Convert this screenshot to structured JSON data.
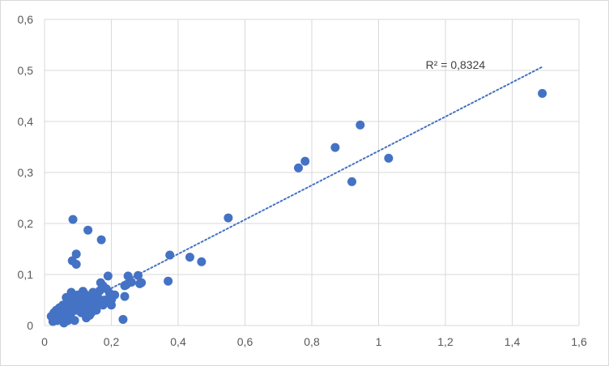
{
  "chart_data": {
    "type": "scatter",
    "title": "",
    "xlabel": "",
    "ylabel": "",
    "xlim": [
      0,
      1.6
    ],
    "ylim": [
      0,
      0.6
    ],
    "x_ticks": [
      "0",
      "0,2",
      "0,4",
      "0,6",
      "0,8",
      "1",
      "1,2",
      "1,4",
      "1,6"
    ],
    "y_ticks": [
      "0",
      "0,1",
      "0,2",
      "0,3",
      "0,4",
      "0,5",
      "0,6"
    ],
    "grid": true,
    "legend": "none",
    "colors": {
      "point": "#4472c4",
      "trendline": "#4472c4",
      "grid": "#d9d9d9"
    },
    "trendline": {
      "type": "linear",
      "style": "dotted",
      "from": [
        0.2,
        0.073
      ],
      "to": [
        1.49,
        0.507
      ],
      "label": "R² = 0,8324",
      "label_at": [
        1.23,
        0.503
      ]
    },
    "points": [
      [
        1.49,
        0.455
      ],
      [
        1.03,
        0.328
      ],
      [
        0.945,
        0.393
      ],
      [
        0.92,
        0.282
      ],
      [
        0.87,
        0.349
      ],
      [
        0.78,
        0.322
      ],
      [
        0.76,
        0.309
      ],
      [
        0.55,
        0.211
      ],
      [
        0.47,
        0.125
      ],
      [
        0.435,
        0.134
      ],
      [
        0.375,
        0.138
      ],
      [
        0.37,
        0.087
      ],
      [
        0.29,
        0.084
      ],
      [
        0.28,
        0.098
      ],
      [
        0.285,
        0.082
      ],
      [
        0.26,
        0.085
      ],
      [
        0.25,
        0.097
      ],
      [
        0.245,
        0.08
      ],
      [
        0.24,
        0.078
      ],
      [
        0.24,
        0.057
      ],
      [
        0.235,
        0.012
      ],
      [
        0.21,
        0.06
      ],
      [
        0.2,
        0.055
      ],
      [
        0.2,
        0.04
      ],
      [
        0.195,
        0.063
      ],
      [
        0.19,
        0.097
      ],
      [
        0.185,
        0.072
      ],
      [
        0.18,
        0.05
      ],
      [
        0.175,
        0.078
      ],
      [
        0.17,
        0.168
      ],
      [
        0.168,
        0.084
      ],
      [
        0.165,
        0.068
      ],
      [
        0.16,
        0.055
      ],
      [
        0.16,
        0.042
      ],
      [
        0.155,
        0.03
      ],
      [
        0.15,
        0.05
      ],
      [
        0.145,
        0.065
      ],
      [
        0.14,
        0.04
      ],
      [
        0.135,
        0.02
      ],
      [
        0.13,
        0.187
      ],
      [
        0.13,
        0.055
      ],
      [
        0.125,
        0.045
      ],
      [
        0.12,
        0.03
      ],
      [
        0.12,
        0.062
      ],
      [
        0.115,
        0.067
      ],
      [
        0.11,
        0.05
      ],
      [
        0.105,
        0.035
      ],
      [
        0.1,
        0.06
      ],
      [
        0.1,
        0.045
      ],
      [
        0.095,
        0.12
      ],
      [
        0.095,
        0.14
      ],
      [
        0.095,
        0.03
      ],
      [
        0.09,
        0.055
      ],
      [
        0.085,
        0.208
      ],
      [
        0.085,
        0.04
      ],
      [
        0.083,
        0.127
      ],
      [
        0.08,
        0.065
      ],
      [
        0.08,
        0.025
      ],
      [
        0.078,
        0.015
      ],
      [
        0.075,
        0.05
      ],
      [
        0.072,
        0.035
      ],
      [
        0.07,
        0.01
      ],
      [
        0.068,
        0.045
      ],
      [
        0.065,
        0.055
      ],
      [
        0.062,
        0.02
      ],
      [
        0.06,
        0.03
      ],
      [
        0.058,
        0.005
      ],
      [
        0.055,
        0.04
      ],
      [
        0.05,
        0.025
      ],
      [
        0.048,
        0.015
      ],
      [
        0.045,
        0.035
      ],
      [
        0.04,
        0.02
      ],
      [
        0.038,
        0.01
      ],
      [
        0.035,
        0.03
      ],
      [
        0.03,
        0.015
      ],
      [
        0.028,
        0.025
      ],
      [
        0.025,
        0.008
      ],
      [
        0.02,
        0.018
      ],
      [
        0.11,
        0.025
      ],
      [
        0.125,
        0.015
      ],
      [
        0.14,
        0.025
      ],
      [
        0.09,
        0.01
      ],
      [
        0.105,
        0.058
      ],
      [
        0.115,
        0.04
      ],
      [
        0.07,
        0.03
      ],
      [
        0.06,
        0.015
      ],
      [
        0.15,
        0.035
      ],
      [
        0.2,
        0.05
      ],
      [
        0.175,
        0.04
      ],
      [
        0.09,
        0.045
      ]
    ]
  }
}
